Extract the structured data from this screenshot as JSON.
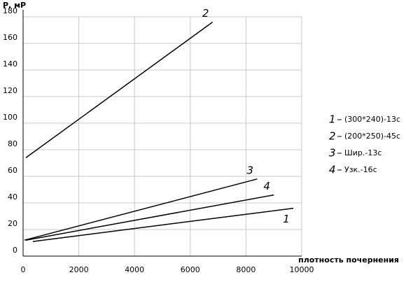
{
  "chart_data": {
    "type": "line",
    "y_label": "Р, мР",
    "x_label": "плотность почернения",
    "xlim": [
      0,
      10000
    ],
    "xticks": [
      0,
      2000,
      4000,
      6000,
      8000,
      10000
    ],
    "ylim": [
      0,
      180
    ],
    "yticks": [
      0,
      20,
      40,
      60,
      80,
      100,
      120,
      140,
      160,
      180
    ],
    "grid": true,
    "legend": "right",
    "series": [
      {
        "label": "1",
        "name": "(300*240)-13с",
        "color": "#000000",
        "x": [
          350,
          9700
        ],
        "values": [
          11,
          36
        ]
      },
      {
        "label": "2",
        "name": "(200*250)-45с",
        "color": "#000000",
        "x": [
          100,
          6800
        ],
        "values": [
          74,
          176
        ]
      },
      {
        "label": "3",
        "name": "Шир.-13с",
        "color": "#000000",
        "x": [
          50,
          8400
        ],
        "values": [
          12,
          58
        ]
      },
      {
        "label": "4",
        "name": "Узк.-16с",
        "color": "#000000",
        "x": [
          100,
          9000
        ],
        "values": [
          12,
          46
        ]
      }
    ]
  }
}
